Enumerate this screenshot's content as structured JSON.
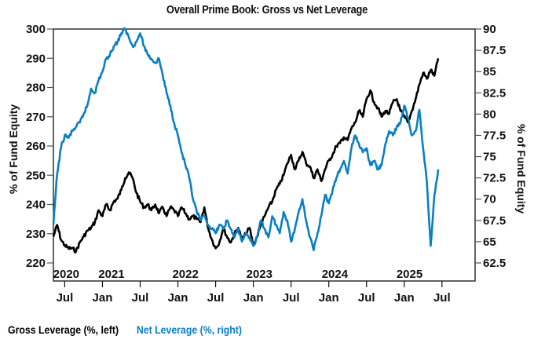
{
  "chart_data": {
    "type": "line",
    "title": "Overall Prime Book: Gross vs Net Leverage",
    "ylabel_left": "% of Fund Equity",
    "ylabel_right": "% of Fund Equity",
    "ylim_left": [
      220,
      300
    ],
    "ylim_right": [
      62.5,
      90
    ],
    "yticks_left": [
      "300",
      "290",
      "280",
      "270",
      "260",
      "250",
      "240",
      "230",
      "220"
    ],
    "yticks_left_values": [
      300,
      290,
      280,
      270,
      260,
      250,
      240,
      230,
      220
    ],
    "yticks_right": [
      "90",
      "87.5",
      "85",
      "82.5",
      "80",
      "77.5",
      "75",
      "72.5",
      "70",
      "67.5",
      "65",
      "62.5"
    ],
    "yticks_right_values": [
      90,
      87.5,
      85,
      82.5,
      80,
      77.5,
      75,
      72.5,
      70,
      67.5,
      65,
      62.5
    ],
    "xlim": [
      2020.35,
      2025.71
    ],
    "xticks": [
      {
        "label": "Jul",
        "t": 2020.5
      },
      {
        "label": "Jan",
        "t": 2021.0
      },
      {
        "label": "Jul",
        "t": 2021.5
      },
      {
        "label": "Jan",
        "t": 2022.0
      },
      {
        "label": "Jul",
        "t": 2022.5
      },
      {
        "label": "Jan",
        "t": 2023.0
      },
      {
        "label": "Jul",
        "t": 2023.5
      },
      {
        "label": "Jan",
        "t": 2024.0
      },
      {
        "label": "Jul",
        "t": 2024.5
      },
      {
        "label": "Jan",
        "t": 2025.0
      },
      {
        "label": "Jul",
        "t": 2025.5
      }
    ],
    "year_labels": [
      {
        "label": "2020",
        "t": 2020.52
      },
      {
        "label": "2021",
        "t": 2021.12
      },
      {
        "label": "2022",
        "t": 2022.1
      },
      {
        "label": "2023",
        "t": 2023.08
      },
      {
        "label": "2024",
        "t": 2024.08
      },
      {
        "label": "2025",
        "t": 2025.07
      }
    ],
    "grid": false,
    "legend_position": "bottom-left",
    "series": [
      {
        "name": "Gross Leverage (%, left)",
        "axis": "left",
        "color": "#000000",
        "x": [
          2020.35,
          2020.4,
          2020.45,
          2020.5,
          2020.55,
          2020.6,
          2020.65,
          2020.7,
          2020.75,
          2020.8,
          2020.85,
          2020.9,
          2020.95,
          2021.0,
          2021.05,
          2021.1,
          2021.15,
          2021.2,
          2021.25,
          2021.3,
          2021.35,
          2021.4,
          2021.45,
          2021.5,
          2021.55,
          2021.6,
          2021.65,
          2021.7,
          2021.75,
          2021.8,
          2021.85,
          2021.9,
          2021.95,
          2022.0,
          2022.05,
          2022.1,
          2022.15,
          2022.2,
          2022.25,
          2022.3,
          2022.35,
          2022.4,
          2022.45,
          2022.5,
          2022.55,
          2022.6,
          2022.65,
          2022.7,
          2022.75,
          2022.8,
          2022.85,
          2022.9,
          2022.95,
          2023.0,
          2023.05,
          2023.1,
          2023.15,
          2023.2,
          2023.25,
          2023.3,
          2023.35,
          2023.4,
          2023.45,
          2023.5,
          2023.55,
          2023.6,
          2023.65,
          2023.7,
          2023.75,
          2023.8,
          2023.85,
          2023.9,
          2023.95,
          2024.0,
          2024.05,
          2024.1,
          2024.15,
          2024.2,
          2024.25,
          2024.3,
          2024.35,
          2024.4,
          2024.45,
          2024.5,
          2024.55,
          2024.6,
          2024.65,
          2024.7,
          2024.75,
          2024.8,
          2024.85,
          2024.9,
          2024.95,
          2025.0,
          2025.05,
          2025.1,
          2025.15,
          2025.2,
          2025.25,
          2025.3,
          2025.35,
          2025.4,
          2025.45
        ],
        "values": [
          229,
          233,
          228,
          226,
          225,
          225,
          224,
          227,
          229,
          231,
          232,
          234,
          238,
          236,
          240,
          238,
          241,
          242,
          245,
          249,
          251,
          249,
          244,
          241,
          239,
          240,
          238,
          240,
          237,
          239,
          236,
          239,
          238,
          236,
          239,
          237,
          235,
          236,
          235,
          234,
          239,
          232,
          228,
          225,
          227,
          232,
          229,
          227,
          230,
          232,
          228,
          230,
          232,
          226,
          229,
          233,
          236,
          239,
          241,
          245,
          247,
          250,
          254,
          257,
          252,
          255,
          258,
          254,
          253,
          249,
          252,
          248,
          252,
          255,
          257,
          260,
          261,
          263,
          262,
          266,
          268,
          272,
          270,
          276,
          279,
          275,
          273,
          270,
          272,
          271,
          275,
          276,
          272,
          270,
          268,
          272,
          276,
          281,
          285,
          283,
          286,
          284,
          290
        ]
      },
      {
        "name": "Net Leverage (%, right)",
        "axis": "right",
        "color": "#0a7fc2",
        "x": [
          2020.35,
          2020.4,
          2020.45,
          2020.5,
          2020.55,
          2020.6,
          2020.65,
          2020.7,
          2020.75,
          2020.8,
          2020.85,
          2020.9,
          2020.95,
          2021.0,
          2021.05,
          2021.1,
          2021.15,
          2021.2,
          2021.25,
          2021.3,
          2021.35,
          2021.4,
          2021.45,
          2021.5,
          2021.55,
          2021.6,
          2021.65,
          2021.7,
          2021.75,
          2021.8,
          2021.85,
          2021.9,
          2021.95,
          2022.0,
          2022.05,
          2022.1,
          2022.15,
          2022.2,
          2022.25,
          2022.3,
          2022.35,
          2022.4,
          2022.45,
          2022.5,
          2022.55,
          2022.6,
          2022.65,
          2022.7,
          2022.75,
          2022.8,
          2022.85,
          2022.9,
          2022.95,
          2023.0,
          2023.05,
          2023.1,
          2023.15,
          2023.2,
          2023.25,
          2023.3,
          2023.35,
          2023.4,
          2023.45,
          2023.5,
          2023.55,
          2023.6,
          2023.65,
          2023.7,
          2023.75,
          2023.8,
          2023.85,
          2023.9,
          2023.95,
          2024.0,
          2024.05,
          2024.1,
          2024.15,
          2024.2,
          2024.25,
          2024.3,
          2024.35,
          2024.4,
          2024.45,
          2024.5,
          2024.55,
          2024.6,
          2024.65,
          2024.7,
          2024.75,
          2024.8,
          2024.85,
          2024.9,
          2024.95,
          2025.0,
          2025.05,
          2025.1,
          2025.15,
          2025.2,
          2025.25,
          2025.3,
          2025.35,
          2025.4,
          2025.45
        ],
        "values": [
          67,
          73,
          76,
          77.5,
          77.2,
          78,
          78.5,
          79,
          80,
          81,
          83,
          82.5,
          84,
          85,
          86.5,
          87,
          88,
          88.5,
          89.5,
          90,
          89,
          88,
          88.5,
          89.5,
          88,
          87,
          86.5,
          86,
          86.5,
          84.5,
          82.5,
          81,
          79,
          77.5,
          75.5,
          74,
          72.5,
          70,
          68.5,
          67.5,
          68,
          67,
          66.5,
          66,
          67,
          66.5,
          67.5,
          66.5,
          65.5,
          66.5,
          65,
          66,
          65.5,
          64.5,
          65.5,
          67.5,
          66.5,
          65.5,
          68,
          67,
          66,
          68.5,
          67.5,
          65,
          66.5,
          68.5,
          70,
          67.5,
          65.5,
          64,
          66,
          68,
          70.5,
          69.5,
          71,
          72.5,
          73.5,
          74.5,
          73,
          76,
          77.5,
          76.5,
          75.5,
          76,
          74,
          74.5,
          73.5,
          74,
          76.5,
          78,
          77.5,
          78.5,
          79,
          81,
          79.5,
          77.5,
          78,
          80.5,
          76,
          72,
          64.5,
          70.5,
          73.5
        ]
      }
    ]
  },
  "legend": {
    "gross_label": "Gross Leverage (%, left)",
    "net_label": "Net Leverage (%, right)",
    "gross_color": "#000000",
    "net_color": "#0a7fc2"
  }
}
